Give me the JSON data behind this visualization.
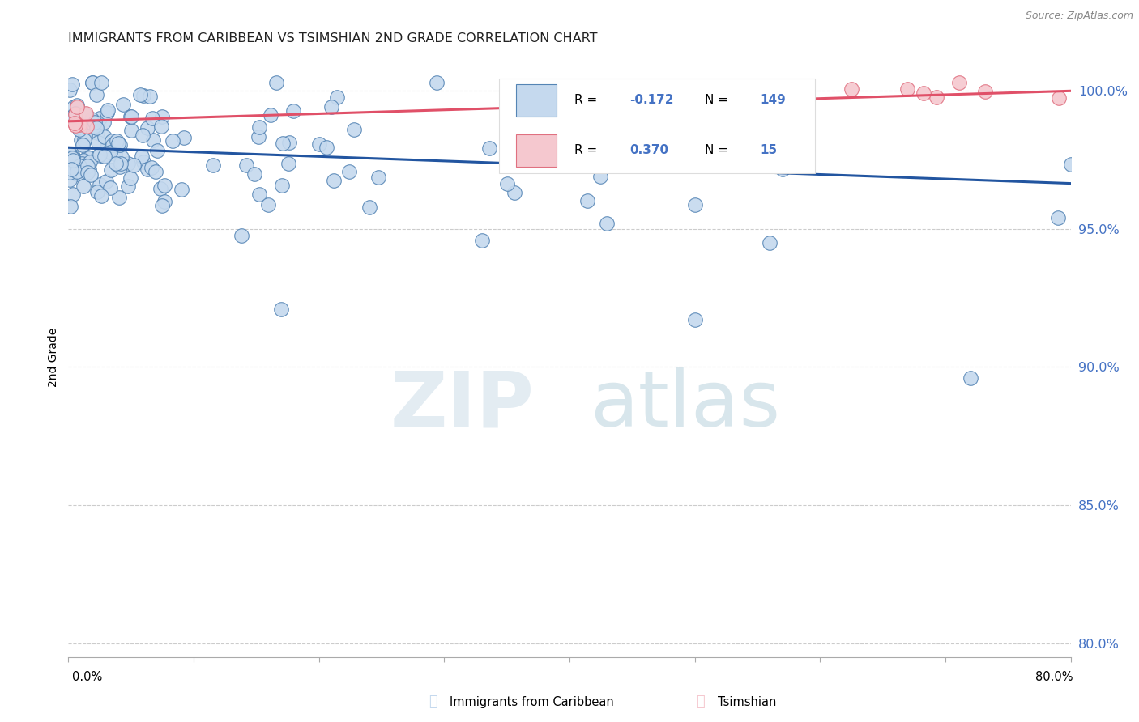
{
  "title": "IMMIGRANTS FROM CARIBBEAN VS TSIMSHIAN 2ND GRADE CORRELATION CHART",
  "source": "Source: ZipAtlas.com",
  "ylabel": "2nd Grade",
  "y_tick_labels": [
    "80.0%",
    "85.0%",
    "90.0%",
    "95.0%",
    "100.0%"
  ],
  "y_tick_vals": [
    0.8,
    0.85,
    0.9,
    0.95,
    1.0
  ],
  "xlim": [
    0.0,
    0.8
  ],
  "ylim": [
    0.795,
    1.012
  ],
  "legend_blue_r": "-0.172",
  "legend_blue_n": "149",
  "legend_pink_r": "0.370",
  "legend_pink_n": "15",
  "blue_fill": "#c5d9ee",
  "blue_edge": "#5585b5",
  "pink_fill": "#f5c8cf",
  "pink_edge": "#e07080",
  "blue_line": "#2255a0",
  "pink_line": "#e05068",
  "grid_color": "#cccccc",
  "tick_color": "#4472c4",
  "title_color": "#222222",
  "source_color": "#888888"
}
